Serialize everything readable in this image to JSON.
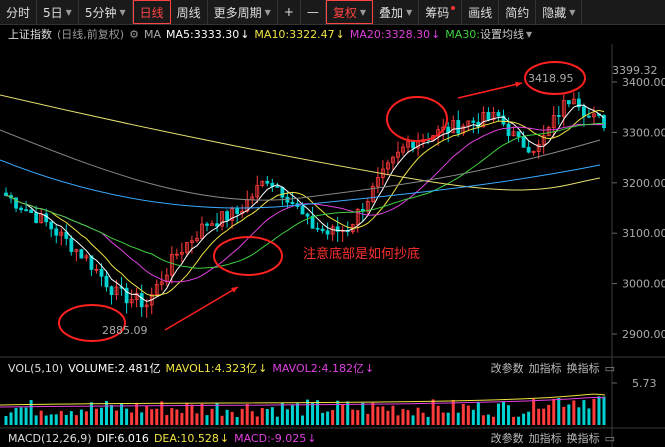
{
  "toolbar": {
    "items": [
      {
        "label": "分时",
        "caret": false,
        "active": false
      },
      {
        "label": "5日",
        "caret": true,
        "active": false
      },
      {
        "label": "5分钟",
        "caret": true,
        "active": false
      },
      {
        "label": "日线",
        "caret": false,
        "active": true
      },
      {
        "label": "周线",
        "caret": false,
        "active": false
      },
      {
        "label": "更多周期",
        "caret": true,
        "active": false
      },
      {
        "label": "+",
        "caret": false,
        "active": false
      },
      {
        "label": "—",
        "caret": false,
        "active": false
      },
      {
        "label": "复权",
        "caret": true,
        "active": true
      },
      {
        "label": "叠加",
        "caret": true,
        "active": false
      },
      {
        "label": "筹码",
        "caret": false,
        "active": false,
        "dot": true
      },
      {
        "label": "画线",
        "caret": false,
        "active": false
      },
      {
        "label": "简约",
        "caret": false,
        "active": false
      },
      {
        "label": "隐藏",
        "caret": true,
        "active": false
      }
    ]
  },
  "main": {
    "name": "上证指数",
    "period": "(日线,前复权)",
    "ma_label": "MA",
    "ma5": "MA5:3333.30",
    "ma10": "MA10:3322.47",
    "ma20": "MA20:3328.30",
    "ma30": "MA30:",
    "settings": "设置均线",
    "colors": {
      "ma5": "#ffffff",
      "ma10": "#f0e442",
      "ma20": "#e040e0",
      "ma30": "#40d040",
      "up": "#ff3b3b",
      "down": "#00d2d2"
    },
    "price_ticks": [
      "3400.00",
      "3300.00",
      "3200.00",
      "3100.00",
      "3000.00",
      "2900.00"
    ],
    "high_label": "3399.32",
    "peak_label": "3418.95",
    "low_label": "2885.09",
    "annotation": "注意底部是如何抄底"
  },
  "volume": {
    "title": "VOL(5,10)",
    "volume": "VOLUME:2.481亿",
    "mavol1": "MAVOL1:4.323亿",
    "mavol2": "MAVOL2:4.182亿",
    "tools": [
      "改参数",
      "加指标",
      "换指标"
    ],
    "tick": "5.73"
  },
  "macd": {
    "title": "MACD(12,26,9)",
    "dif": "DIF:6.016",
    "dea": "DEA:10.528",
    "macd": "MACD:-9.025",
    "tools": [
      "改参数",
      "加指标",
      "换指标"
    ]
  }
}
